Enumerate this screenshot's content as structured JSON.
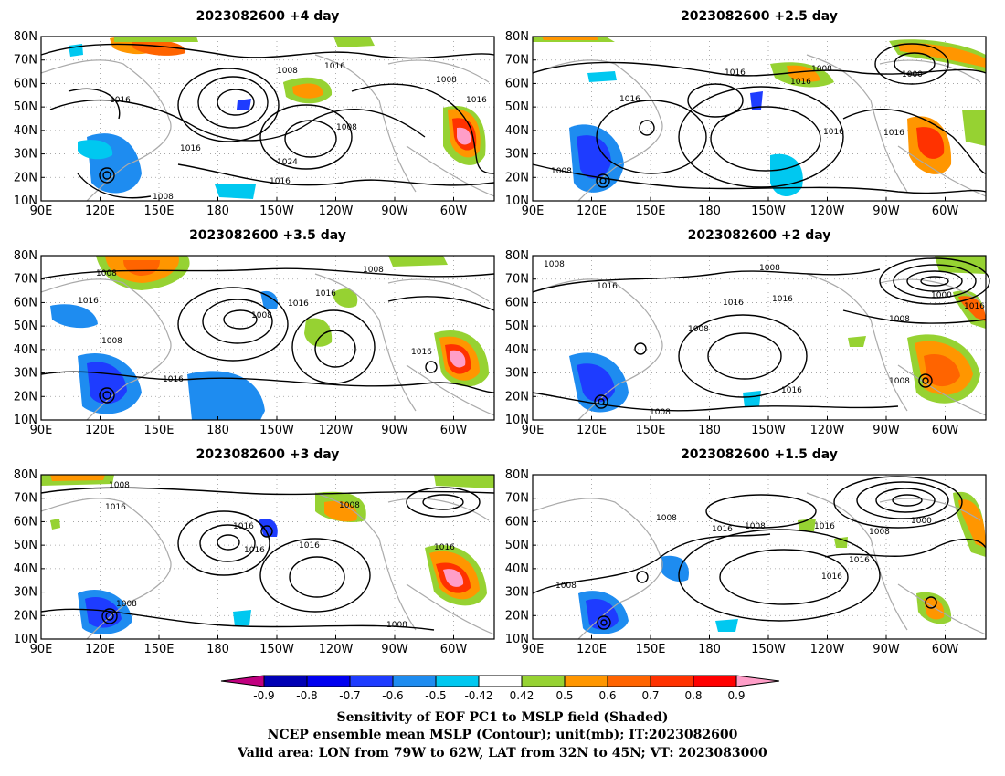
{
  "panels": [
    {
      "title": "2023082600  +4 day",
      "lat_labels": [
        "80N",
        "70N",
        "60N",
        "50N",
        "40N",
        "30N",
        "20N",
        "10N"
      ],
      "lon_labels": [
        "90E",
        "120E",
        "150E",
        "180",
        "150W",
        "120W",
        "90W",
        "60W"
      ],
      "contour_labels": [
        "1008",
        "1016",
        "1016",
        "1008",
        "1016",
        "1008",
        "1016",
        "1024",
        "1016",
        "1008"
      ]
    },
    {
      "title": "2023082600  +2.5  day",
      "lat_labels": [
        "80N",
        "70N",
        "60N",
        "50N",
        "40N",
        "30N",
        "20N",
        "10N"
      ],
      "lon_labels": [
        "90E",
        "120E",
        "150E",
        "180",
        "150W",
        "120W",
        "90W",
        "60W"
      ],
      "contour_labels": [
        "1016",
        "1008",
        "1016",
        "1000",
        "1016",
        "1016",
        "1016",
        "1008"
      ]
    },
    {
      "title": "2023082600  +3.5  day",
      "lat_labels": [
        "80N",
        "70N",
        "60N",
        "50N",
        "40N",
        "30N",
        "20N",
        "10N"
      ],
      "lon_labels": [
        "90E",
        "120E",
        "150E",
        "180",
        "150W",
        "120W",
        "90W",
        "60W"
      ],
      "contour_labels": [
        "1008",
        "1008",
        "1016",
        "1016",
        "1008",
        "1016",
        "1008",
        "1016",
        "1016"
      ]
    },
    {
      "title": "2023082600  +2 day",
      "lat_labels": [
        "80N",
        "70N",
        "60N",
        "50N",
        "40N",
        "30N",
        "20N",
        "10N"
      ],
      "lon_labels": [
        "90E",
        "120E",
        "150E",
        "180",
        "150W",
        "120W",
        "90W",
        "60W"
      ],
      "contour_labels": [
        "1008",
        "1016",
        "1008",
        "1016",
        "1016",
        "1000",
        "1016",
        "1008",
        "1008",
        "1016",
        "1008",
        "1008"
      ]
    },
    {
      "title": "2023082600  +3 day",
      "lat_labels": [
        "80N",
        "70N",
        "60N",
        "50N",
        "40N",
        "30N",
        "20N",
        "10N"
      ],
      "lon_labels": [
        "90E",
        "120E",
        "150E",
        "180",
        "150W",
        "120W",
        "90W",
        "60W"
      ],
      "contour_labels": [
        "1008",
        "1016",
        "1016",
        "1016",
        "1016",
        "1008",
        "1016",
        "1008",
        "1008"
      ]
    },
    {
      "title": "2023082600  +1.5  day",
      "lat_labels": [
        "80N",
        "70N",
        "60N",
        "50N",
        "40N",
        "30N",
        "20N",
        "10N"
      ],
      "lon_labels": [
        "90E",
        "120E",
        "150E",
        "180",
        "150W",
        "120W",
        "90W",
        "60W"
      ],
      "contour_labels": [
        "1008",
        "1016",
        "1008",
        "1016",
        "1000",
        "1008",
        "1016",
        "1016",
        "1008"
      ]
    }
  ],
  "colorbar": {
    "labels": [
      "-0.9",
      "-0.8",
      "-0.7",
      "-0.6",
      "-0.5",
      "-0.42",
      "0.42",
      "0.5",
      "0.6",
      "0.7",
      "0.8",
      "0.9"
    ],
    "colors": [
      "#c0007f",
      "#0000b4",
      "#0000f0",
      "#1e3cff",
      "#1e8cf0",
      "#00c8f0",
      "#ffffff",
      "#96d232",
      "#ff9600",
      "#ff6400",
      "#ff3200",
      "#ff0000",
      "#ff9ec8"
    ]
  },
  "caption": {
    "line1": "Sensitivity of EOF PC1 to MSLP field (Shaded)",
    "line2": "NCEP ensemble mean MSLP (Contour); unit(mb); IT:2023082600",
    "line3": "Valid area: LON from 79W to 62W, LAT from 32N to 45N; VT: 2023083000"
  }
}
